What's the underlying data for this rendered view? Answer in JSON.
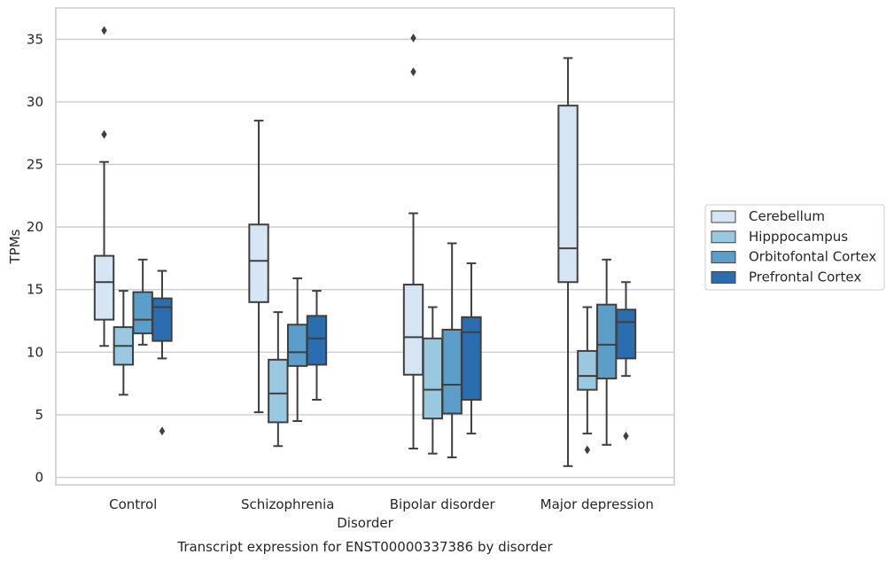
{
  "chart_data": {
    "type": "box",
    "title": "",
    "caption": "Transcript expression for ENST00000337386 by disorder",
    "xlabel": "Disorder",
    "ylabel": "TPMs",
    "ylim": [
      -0.6,
      37.5
    ],
    "yticks": [
      0,
      5,
      10,
      15,
      20,
      25,
      30,
      35
    ],
    "grid": "horizontal",
    "legend_position": "right",
    "categories": [
      "Control",
      "Schizophrenia",
      "Bipolar disorder",
      "Major depression"
    ],
    "series": [
      {
        "name": "Cerebellum",
        "color": "#d6e5f4",
        "boxes": [
          {
            "whisker_low": 10.5,
            "q1": 12.6,
            "median": 15.6,
            "q3": 17.7,
            "whisker_high": 25.2,
            "outliers": [
              27.4,
              35.7
            ]
          },
          {
            "whisker_low": 5.2,
            "q1": 14.0,
            "median": 17.3,
            "q3": 20.2,
            "whisker_high": 28.5,
            "outliers": []
          },
          {
            "whisker_low": 2.3,
            "q1": 8.2,
            "median": 11.2,
            "q3": 15.4,
            "whisker_high": 21.1,
            "outliers": [
              32.4,
              35.1
            ]
          },
          {
            "whisker_low": 0.9,
            "q1": 15.6,
            "median": 18.3,
            "q3": 29.7,
            "whisker_high": 33.5,
            "outliers": []
          }
        ]
      },
      {
        "name": "Hipppocampus",
        "color": "#9ac8e0",
        "boxes": [
          {
            "whisker_low": 6.6,
            "q1": 9.0,
            "median": 10.5,
            "q3": 12.0,
            "whisker_high": 14.9,
            "outliers": []
          },
          {
            "whisker_low": 2.5,
            "q1": 4.4,
            "median": 6.7,
            "q3": 9.4,
            "whisker_high": 13.2,
            "outliers": []
          },
          {
            "whisker_low": 1.9,
            "q1": 4.7,
            "median": 7.0,
            "q3": 11.1,
            "whisker_high": 13.6,
            "outliers": []
          },
          {
            "whisker_low": 3.5,
            "q1": 7.0,
            "median": 8.1,
            "q3": 10.1,
            "whisker_high": 13.6,
            "outliers": [
              2.2
            ]
          }
        ]
      },
      {
        "name": "Orbitofontal Cortex",
        "color": "#5a9ec9",
        "boxes": [
          {
            "whisker_low": 10.6,
            "q1": 11.5,
            "median": 12.6,
            "q3": 14.8,
            "whisker_high": 17.4,
            "outliers": []
          },
          {
            "whisker_low": 4.5,
            "q1": 8.9,
            "median": 10.0,
            "q3": 12.2,
            "whisker_high": 15.9,
            "outliers": []
          },
          {
            "whisker_low": 1.6,
            "q1": 5.1,
            "median": 7.4,
            "q3": 11.8,
            "whisker_high": 18.7,
            "outliers": []
          },
          {
            "whisker_low": 2.6,
            "q1": 7.9,
            "median": 10.6,
            "q3": 13.8,
            "whisker_high": 17.4,
            "outliers": []
          }
        ]
      },
      {
        "name": "Prefrontal Cortex",
        "color": "#2b6eb0",
        "boxes": [
          {
            "whisker_low": 9.5,
            "q1": 10.9,
            "median": 13.6,
            "q3": 14.3,
            "whisker_high": 16.5,
            "outliers": [
              3.7
            ]
          },
          {
            "whisker_low": 6.2,
            "q1": 9.0,
            "median": 11.1,
            "q3": 12.9,
            "whisker_high": 14.9,
            "outliers": []
          },
          {
            "whisker_low": 3.5,
            "q1": 6.2,
            "median": 11.6,
            "q3": 12.8,
            "whisker_high": 17.1,
            "outliers": []
          },
          {
            "whisker_low": 8.1,
            "q1": 9.5,
            "median": 12.4,
            "q3": 13.4,
            "whisker_high": 15.6,
            "outliers": [
              3.3
            ]
          }
        ]
      }
    ]
  }
}
